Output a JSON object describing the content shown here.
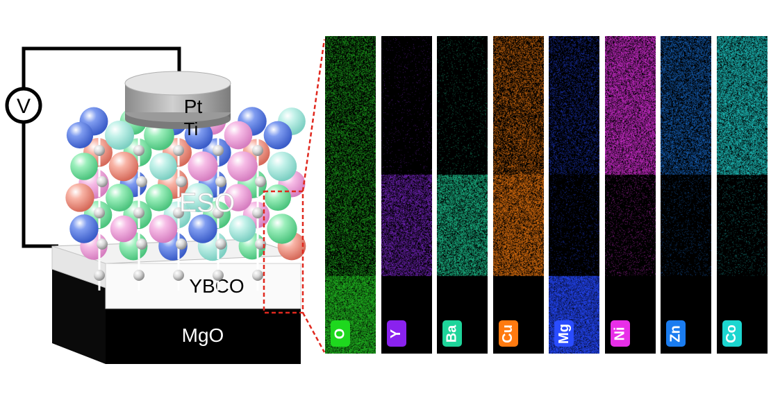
{
  "schematic": {
    "voltmeter_label": "V",
    "electrode_top_label": "Pt",
    "electrode_adhesion_label": "Ti",
    "film_label": "ESO",
    "layer1_label": "YBCO",
    "substrate_label": "MgO"
  },
  "eds_maps": [
    {
      "element": "O",
      "color": "#22c322",
      "badge_color": "#1ed81e",
      "profile": [
        0.55,
        0.55,
        0.9
      ]
    },
    {
      "element": "Y",
      "color": "#8a2be2",
      "badge_color": "#8a22ee",
      "profile": [
        0.05,
        0.65,
        0.0
      ]
    },
    {
      "element": "Ba",
      "color": "#1fd29a",
      "badge_color": "#1ed49a",
      "profile": [
        0.08,
        0.75,
        0.0
      ]
    },
    {
      "element": "Cu",
      "color": "#ff8010",
      "badge_color": "#ff7a10",
      "profile": [
        0.55,
        0.75,
        0.0
      ]
    },
    {
      "element": "Mg",
      "color": "#2448ff",
      "badge_color": "#2a4cff",
      "profile": [
        0.35,
        0.12,
        0.95
      ]
    },
    {
      "element": "Ni",
      "color": "#e030e0",
      "badge_color": "#e82ee8",
      "profile": [
        0.8,
        0.15,
        0.0
      ]
    },
    {
      "element": "Zn",
      "color": "#1a78e6",
      "badge_color": "#1a7cf0",
      "profile": [
        0.6,
        0.12,
        0.0
      ]
    },
    {
      "element": "Co",
      "color": "#20d0cc",
      "badge_color": "#1cd6d0",
      "profile": [
        0.8,
        0.12,
        0.0
      ]
    }
  ],
  "colors": {
    "wire": "#000000",
    "callout": "#e0281e",
    "substrate": "#000000",
    "layer1": "#f6f6f6",
    "electrode": "#c8c8c8",
    "atom_red": "#f4a090",
    "atom_green": "#8fe8b0",
    "atom_blue": "#6a8ee8",
    "atom_cyan": "#b8ece4",
    "atom_pink": "#f4b0e0",
    "atom_small": "#dcdcdc"
  }
}
